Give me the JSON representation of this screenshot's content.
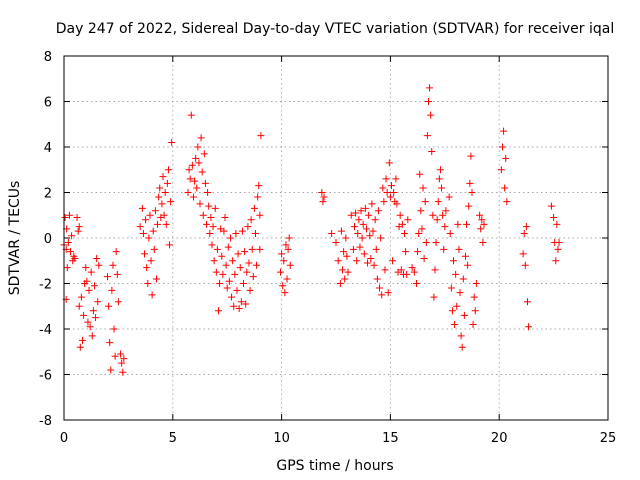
{
  "chart_data": {
    "type": "scatter",
    "title": "Day 247 of 2022, Sidereal Day-to-day VTEC variation (SDTVAR) for receiver iqal",
    "xlabel": "GPS time / hours",
    "ylabel": "SDTVAR / TECUs",
    "xlim": [
      0,
      25
    ],
    "ylim": [
      -8,
      8
    ],
    "x_ticks": [
      0,
      5,
      10,
      15,
      20,
      25
    ],
    "y_ticks": [
      -8,
      -6,
      -4,
      -2,
      0,
      2,
      4,
      6,
      8
    ],
    "x_tick_labels": [
      "0",
      "5",
      "10",
      "15",
      "20",
      "25"
    ],
    "y_tick_labels": [
      "-8",
      "-6",
      "-4",
      "-2",
      "0",
      "2",
      "4",
      "6",
      "8"
    ],
    "grid": true,
    "marker": "plus",
    "marker_color": "#ff0000",
    "series": [
      {
        "name": "SDTVAR",
        "points": [
          [
            0.0,
            -0.3
          ],
          [
            0.05,
            0.9
          ],
          [
            0.1,
            -0.5
          ],
          [
            0.1,
            -2.7
          ],
          [
            0.12,
            0.4
          ],
          [
            0.15,
            -1.3
          ],
          [
            0.2,
            -0.2
          ],
          [
            0.25,
            1.0
          ],
          [
            0.3,
            -0.6
          ],
          [
            0.35,
            0.1
          ],
          [
            0.4,
            -1.0
          ],
          [
            0.45,
            -0.8
          ],
          [
            0.5,
            -0.9
          ],
          [
            0.6,
            0.9
          ],
          [
            0.65,
            0.3
          ],
          [
            0.7,
            0.5
          ],
          [
            0.7,
            -3.0
          ],
          [
            0.75,
            -4.8
          ],
          [
            0.8,
            -2.6
          ],
          [
            0.85,
            -4.5
          ],
          [
            0.9,
            -3.4
          ],
          [
            0.95,
            -2.0
          ],
          [
            1.0,
            -1.3
          ],
          [
            1.05,
            -1.9
          ],
          [
            1.1,
            -3.7
          ],
          [
            1.15,
            -2.3
          ],
          [
            1.2,
            -3.9
          ],
          [
            1.25,
            -1.5
          ],
          [
            1.3,
            -4.3
          ],
          [
            1.35,
            -3.2
          ],
          [
            1.4,
            -2.1
          ],
          [
            1.45,
            -3.5
          ],
          [
            1.5,
            -0.9
          ],
          [
            1.55,
            -2.8
          ],
          [
            1.6,
            -1.2
          ],
          [
            2.0,
            -1.7
          ],
          [
            2.05,
            -3.0
          ],
          [
            2.1,
            -4.6
          ],
          [
            2.15,
            -5.8
          ],
          [
            2.2,
            -2.3
          ],
          [
            2.25,
            -1.2
          ],
          [
            2.3,
            -4.0
          ],
          [
            2.35,
            -5.2
          ],
          [
            2.4,
            -0.6
          ],
          [
            2.45,
            -1.6
          ],
          [
            2.5,
            -2.8
          ],
          [
            2.6,
            -5.1
          ],
          [
            2.65,
            -5.5
          ],
          [
            2.7,
            -5.9
          ],
          [
            2.75,
            -5.3
          ],
          [
            3.5,
            0.5
          ],
          [
            3.6,
            1.3
          ],
          [
            3.65,
            0.2
          ],
          [
            3.7,
            -0.7
          ],
          [
            3.75,
            0.8
          ],
          [
            3.8,
            -1.3
          ],
          [
            3.85,
            -2.0
          ],
          [
            3.9,
            0.0
          ],
          [
            3.95,
            1.0
          ],
          [
            4.0,
            -1.0
          ],
          [
            4.05,
            -2.5
          ],
          [
            4.1,
            0.3
          ],
          [
            4.15,
            -0.5
          ],
          [
            4.2,
            1.2
          ],
          [
            4.25,
            -1.8
          ],
          [
            4.3,
            0.6
          ],
          [
            4.35,
            1.8
          ],
          [
            4.4,
            2.2
          ],
          [
            4.45,
            0.9
          ],
          [
            4.5,
            1.5
          ],
          [
            4.55,
            2.7
          ],
          [
            4.6,
            1.0
          ],
          [
            4.65,
            2.0
          ],
          [
            4.7,
            0.6
          ],
          [
            4.75,
            2.4
          ],
          [
            4.8,
            3.0
          ],
          [
            4.85,
            -0.3
          ],
          [
            4.9,
            1.6
          ],
          [
            4.95,
            4.2
          ],
          [
            5.7,
            2.0
          ],
          [
            5.75,
            3.0
          ],
          [
            5.8,
            2.6
          ],
          [
            5.85,
            5.4
          ],
          [
            5.9,
            3.2
          ],
          [
            5.95,
            1.8
          ],
          [
            6.0,
            2.5
          ],
          [
            6.05,
            3.5
          ],
          [
            6.1,
            2.2
          ],
          [
            6.15,
            4.0
          ],
          [
            6.2,
            3.3
          ],
          [
            6.25,
            1.5
          ],
          [
            6.3,
            4.4
          ],
          [
            6.35,
            2.9
          ],
          [
            6.4,
            1.0
          ],
          [
            6.45,
            3.7
          ],
          [
            6.5,
            2.4
          ],
          [
            6.55,
            0.6
          ],
          [
            6.6,
            2.0
          ],
          [
            6.65,
            1.4
          ],
          [
            6.7,
            0.2
          ],
          [
            6.75,
            0.9
          ],
          [
            6.8,
            -0.3
          ],
          [
            6.85,
            0.5
          ],
          [
            6.9,
            -1.0
          ],
          [
            6.95,
            1.3
          ],
          [
            7.0,
            -1.5
          ],
          [
            7.05,
            -0.5
          ],
          [
            7.1,
            -3.2
          ],
          [
            7.15,
            -2.0
          ],
          [
            7.2,
            0.4
          ],
          [
            7.25,
            -0.8
          ],
          [
            7.3,
            -1.6
          ],
          [
            7.35,
            0.3
          ],
          [
            7.4,
            0.9
          ],
          [
            7.45,
            -1.2
          ],
          [
            7.5,
            -2.2
          ],
          [
            7.55,
            -0.4
          ],
          [
            7.6,
            -1.9
          ],
          [
            7.65,
            0.0
          ],
          [
            7.7,
            -2.6
          ],
          [
            7.75,
            -1.0
          ],
          [
            7.8,
            -3.0
          ],
          [
            7.85,
            -1.6
          ],
          [
            7.9,
            0.2
          ],
          [
            7.95,
            -2.3
          ],
          [
            8.0,
            -0.7
          ],
          [
            8.05,
            -3.1
          ],
          [
            8.1,
            -1.3
          ],
          [
            8.15,
            -2.8
          ],
          [
            8.2,
            0.3
          ],
          [
            8.25,
            -2.0
          ],
          [
            8.3,
            -0.6
          ],
          [
            8.35,
            -2.9
          ],
          [
            8.4,
            -1.5
          ],
          [
            8.45,
            0.5
          ],
          [
            8.5,
            -1.1
          ],
          [
            8.55,
            -2.3
          ],
          [
            8.6,
            0.8
          ],
          [
            8.65,
            -0.5
          ],
          [
            8.7,
            -1.7
          ],
          [
            8.75,
            1.3
          ],
          [
            8.8,
            0.2
          ],
          [
            8.85,
            -1.2
          ],
          [
            8.9,
            1.8
          ],
          [
            8.95,
            2.3
          ],
          [
            9.0,
            -0.5
          ],
          [
            9.05,
            4.5
          ],
          [
            9.0,
            1.0
          ],
          [
            9.95,
            -1.5
          ],
          [
            10.0,
            -0.7
          ],
          [
            10.05,
            -2.1
          ],
          [
            10.1,
            -1.0
          ],
          [
            10.15,
            -2.4
          ],
          [
            10.2,
            -0.3
          ],
          [
            10.25,
            -1.8
          ],
          [
            10.3,
            -0.5
          ],
          [
            10.35,
            0.0
          ],
          [
            10.4,
            -1.2
          ],
          [
            11.85,
            2.0
          ],
          [
            11.9,
            1.6
          ],
          [
            11.95,
            1.8
          ],
          [
            12.3,
            0.2
          ],
          [
            12.5,
            -0.2
          ],
          [
            12.6,
            -1.0
          ],
          [
            12.7,
            -2.0
          ],
          [
            12.75,
            0.3
          ],
          [
            12.8,
            -1.4
          ],
          [
            12.85,
            -0.6
          ],
          [
            12.9,
            -1.8
          ],
          [
            12.95,
            0.0
          ],
          [
            13.0,
            -0.8
          ],
          [
            13.05,
            -1.5
          ],
          [
            13.2,
            1.0
          ],
          [
            13.3,
            -0.5
          ],
          [
            13.35,
            0.5
          ],
          [
            13.4,
            1.1
          ],
          [
            13.45,
            -1.0
          ],
          [
            13.5,
            0.2
          ],
          [
            13.55,
            0.8
          ],
          [
            13.6,
            -0.4
          ],
          [
            13.65,
            1.2
          ],
          [
            13.7,
            0.0
          ],
          [
            13.75,
            0.6
          ],
          [
            13.8,
            -0.7
          ],
          [
            13.85,
            1.3
          ],
          [
            13.9,
            0.4
          ],
          [
            13.95,
            -1.1
          ],
          [
            14.0,
            1.0
          ],
          [
            14.05,
            0.1
          ],
          [
            14.1,
            -0.9
          ],
          [
            14.15,
            1.5
          ],
          [
            14.2,
            0.3
          ],
          [
            14.25,
            -1.2
          ],
          [
            14.3,
            0.8
          ],
          [
            14.35,
            -0.5
          ],
          [
            14.4,
            -1.8
          ],
          [
            14.45,
            1.2
          ],
          [
            14.5,
            -2.2
          ],
          [
            14.55,
            0.0
          ],
          [
            14.6,
            -2.5
          ],
          [
            14.65,
            2.2
          ],
          [
            14.7,
            1.6
          ],
          [
            14.75,
            -1.4
          ],
          [
            14.8,
            2.6
          ],
          [
            14.85,
            2.0
          ],
          [
            14.9,
            -2.4
          ],
          [
            14.95,
            3.3
          ],
          [
            15.0,
            1.8
          ],
          [
            15.05,
            2.3
          ],
          [
            15.1,
            -1.0
          ],
          [
            15.15,
            2.0
          ],
          [
            15.2,
            1.6
          ],
          [
            15.25,
            2.6
          ],
          [
            15.3,
            1.5
          ],
          [
            15.35,
            -1.5
          ],
          [
            15.4,
            0.5
          ],
          [
            15.45,
            1.0
          ],
          [
            15.5,
            -1.4
          ],
          [
            15.55,
            0.6
          ],
          [
            15.6,
            -1.6
          ],
          [
            15.65,
            0.2
          ],
          [
            15.7,
            -0.6
          ],
          [
            15.75,
            -1.6
          ],
          [
            15.8,
            0.8
          ],
          [
            16.0,
            -1.3
          ],
          [
            16.1,
            -1.5
          ],
          [
            16.2,
            -2.0
          ],
          [
            16.25,
            -0.6
          ],
          [
            16.3,
            0.2
          ],
          [
            16.35,
            2.8
          ],
          [
            16.4,
            1.2
          ],
          [
            16.45,
            0.4
          ],
          [
            16.5,
            2.2
          ],
          [
            16.55,
            -0.9
          ],
          [
            16.6,
            1.6
          ],
          [
            16.65,
            -0.2
          ],
          [
            16.7,
            4.5
          ],
          [
            16.75,
            6.0
          ],
          [
            16.8,
            6.6
          ],
          [
            16.85,
            5.4
          ],
          [
            16.9,
            3.8
          ],
          [
            16.95,
            1.0
          ],
          [
            17.0,
            -2.6
          ],
          [
            17.05,
            -1.4
          ],
          [
            17.1,
            -0.2
          ],
          [
            17.15,
            0.8
          ],
          [
            17.2,
            1.6
          ],
          [
            17.25,
            2.6
          ],
          [
            17.3,
            3.0
          ],
          [
            17.35,
            2.2
          ],
          [
            17.4,
            1.0
          ],
          [
            17.45,
            -0.5
          ],
          [
            17.5,
            0.5
          ],
          [
            17.55,
            1.2
          ],
          [
            17.7,
            1.8
          ],
          [
            17.75,
            0.2
          ],
          [
            17.8,
            -2.2
          ],
          [
            17.85,
            -3.2
          ],
          [
            17.9,
            -1.0
          ],
          [
            17.95,
            -3.8
          ],
          [
            18.0,
            -1.6
          ],
          [
            18.05,
            -3.0
          ],
          [
            18.1,
            0.6
          ],
          [
            18.15,
            -0.5
          ],
          [
            18.2,
            -2.4
          ],
          [
            18.25,
            -4.3
          ],
          [
            18.3,
            -4.8
          ],
          [
            18.35,
            -1.8
          ],
          [
            18.4,
            -3.4
          ],
          [
            18.45,
            -0.8
          ],
          [
            18.5,
            0.6
          ],
          [
            18.55,
            -1.2
          ],
          [
            18.6,
            1.4
          ],
          [
            18.65,
            2.4
          ],
          [
            18.7,
            3.6
          ],
          [
            18.75,
            2.0
          ],
          [
            18.8,
            -3.8
          ],
          [
            18.85,
            -2.6
          ],
          [
            18.9,
            -3.2
          ],
          [
            18.95,
            -2.0
          ],
          [
            19.1,
            1.0
          ],
          [
            19.15,
            0.4
          ],
          [
            19.2,
            0.8
          ],
          [
            19.25,
            -0.2
          ],
          [
            19.3,
            0.6
          ],
          [
            20.1,
            3.0
          ],
          [
            20.15,
            4.0
          ],
          [
            20.2,
            4.7
          ],
          [
            20.25,
            2.2
          ],
          [
            20.3,
            3.5
          ],
          [
            20.35,
            1.6
          ],
          [
            21.1,
            -0.7
          ],
          [
            21.15,
            0.2
          ],
          [
            21.2,
            -1.2
          ],
          [
            21.25,
            0.5
          ],
          [
            21.3,
            -2.8
          ],
          [
            21.35,
            -3.9
          ],
          [
            22.4,
            1.4
          ],
          [
            22.5,
            0.9
          ],
          [
            22.55,
            -0.2
          ],
          [
            22.6,
            -1.0
          ],
          [
            22.65,
            0.6
          ],
          [
            22.7,
            -0.5
          ],
          [
            22.75,
            -0.2
          ]
        ]
      }
    ]
  }
}
